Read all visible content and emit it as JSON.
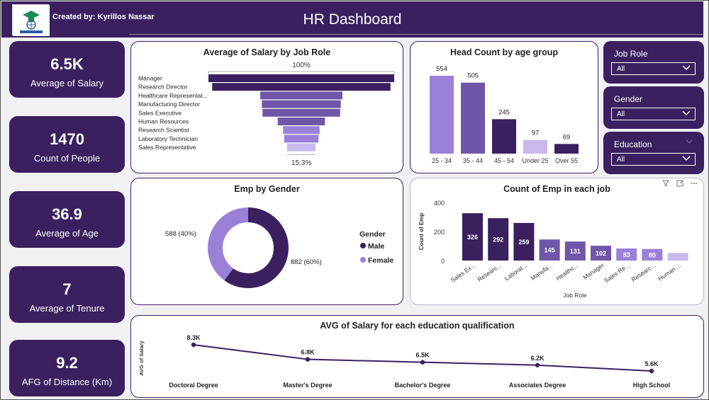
{
  "header": {
    "credit": "Created by: Kyrillos Nassar",
    "title": "HR Dashboard"
  },
  "kpis": [
    {
      "value": "6.5K",
      "label": "Average of Salary"
    },
    {
      "value": "1470",
      "label": "Count of People"
    },
    {
      "value": "36.9",
      "label": "Average of Age"
    },
    {
      "value": "7",
      "label": "Average of Tenure"
    },
    {
      "value": "9.2",
      "label": "AFG of Distance (Km)"
    }
  ],
  "filters": [
    {
      "label": "Job Role",
      "value": "All"
    },
    {
      "label": "Gender",
      "value": "All"
    },
    {
      "label": "Education",
      "value": "All"
    }
  ],
  "colors": {
    "dark_purple": "#3b2060",
    "medium_purple": "#6f56a8",
    "light_purple": "#9b80d8",
    "pale_purple": "#c8b8ee",
    "background": "#f1f0f3"
  },
  "chart_data": [
    {
      "type": "bar",
      "title": "Average of Salary by Job Role",
      "categories": [
        "Manager",
        "Research Director",
        "Healthcare Representat...",
        "Manufacturing Director",
        "Sales Executive",
        "Human Resources",
        "Research Scientist",
        "Laboratory Technician",
        "Sales Representative"
      ],
      "values": [
        100,
        96,
        44.2,
        42.5,
        41.8,
        25.4,
        19.7,
        18.5,
        15.3
      ],
      "top_label": "100%",
      "bottom_label": "15.3%"
    },
    {
      "type": "bar",
      "title": "Head Count by age group",
      "categories": [
        "25 - 34",
        "35 - 44",
        "45 - 54",
        "Under 25",
        "Over 55"
      ],
      "values": [
        554,
        505,
        245,
        97,
        69
      ],
      "ylim": [
        0,
        554
      ]
    },
    {
      "type": "pie",
      "title": "Emp by Gender",
      "legend_title": "Gender",
      "slices": [
        {
          "name": "Male",
          "value": 882,
          "label": "882 (60%)"
        },
        {
          "name": "Female",
          "value": 588,
          "label": "588 (40%)"
        }
      ]
    },
    {
      "type": "bar",
      "title": "Count of Emp in each job",
      "xlabel": "Job Role",
      "ylabel": "Count of Emp",
      "categories": [
        "Sales Ex...",
        "Researc...",
        "Laborat...",
        "Manufa...",
        "Healthc...",
        "Manager",
        "Sales Re...",
        "Researc...",
        "Human ..."
      ],
      "values": [
        326,
        292,
        259,
        145,
        131,
        102,
        83,
        80,
        52
      ],
      "data_labels": [
        "326",
        "292",
        "259",
        "145",
        "131",
        "102",
        "83",
        "80",
        ""
      ],
      "yticks": [
        "400",
        "200",
        "0"
      ],
      "ylim": [
        0,
        400
      ]
    },
    {
      "type": "line",
      "title": "AVG of Salary for each education qualification",
      "ylabel": "AVG of Salary",
      "categories": [
        "Doctoral Degree",
        "Master's Degree",
        "Bachelor's Degree",
        "Associates Degree",
        "High School"
      ],
      "values": [
        8300,
        6800,
        6500,
        6200,
        5600
      ],
      "data_labels": [
        "8.3K",
        "6.8K",
        "6.5K",
        "6.2K",
        "5.6K"
      ]
    }
  ]
}
